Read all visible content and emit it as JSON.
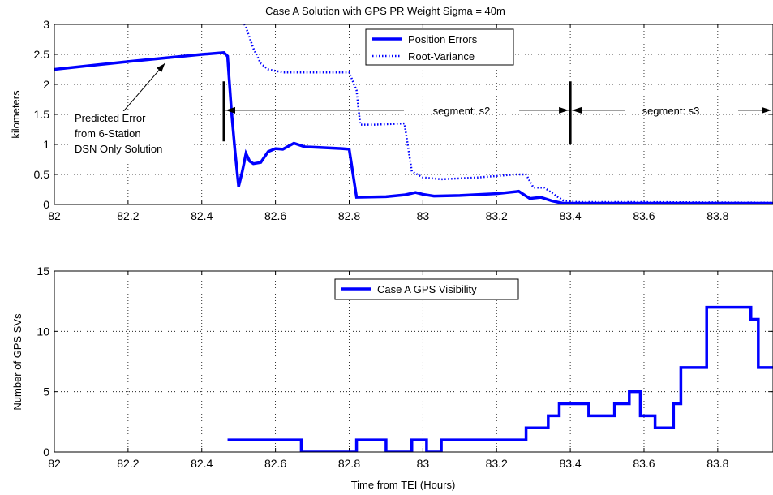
{
  "chart_data": [
    {
      "type": "line",
      "title": "Case A Solution with GPS PR Weight Sigma = 40m",
      "xlabel": "",
      "ylabel": "kilometers",
      "xlim": [
        82,
        83.95
      ],
      "ylim": [
        0,
        3
      ],
      "xticks": [
        "82",
        "82.2",
        "82.4",
        "82.6",
        "82.8",
        "83",
        "83.2",
        "83.4",
        "83.6",
        "83.8"
      ],
      "yticks": [
        "0",
        "0.5",
        "1",
        "1.5",
        "2",
        "2.5",
        "3"
      ],
      "grid": true,
      "legend_position": "top-center",
      "series": [
        {
          "name": "Position Errors",
          "style": "solid",
          "color": "#0000ff",
          "points": [
            [
              82.0,
              2.25
            ],
            [
              82.2,
              2.38
            ],
            [
              82.4,
              2.5
            ],
            [
              82.46,
              2.53
            ],
            [
              82.47,
              2.47
            ],
            [
              82.48,
              1.6
            ],
            [
              82.49,
              0.9
            ],
            [
              82.5,
              0.3
            ],
            [
              82.51,
              0.55
            ],
            [
              82.52,
              0.85
            ],
            [
              82.53,
              0.72
            ],
            [
              82.54,
              0.68
            ],
            [
              82.56,
              0.7
            ],
            [
              82.58,
              0.88
            ],
            [
              82.6,
              0.93
            ],
            [
              82.62,
              0.92
            ],
            [
              82.65,
              1.02
            ],
            [
              82.68,
              0.96
            ],
            [
              82.72,
              0.95
            ],
            [
              82.78,
              0.93
            ],
            [
              82.8,
              0.92
            ],
            [
              82.82,
              0.12
            ],
            [
              82.9,
              0.13
            ],
            [
              82.95,
              0.16
            ],
            [
              82.98,
              0.2
            ],
            [
              83.0,
              0.17
            ],
            [
              83.03,
              0.14
            ],
            [
              83.1,
              0.15
            ],
            [
              83.2,
              0.18
            ],
            [
              83.26,
              0.22
            ],
            [
              83.29,
              0.1
            ],
            [
              83.32,
              0.12
            ],
            [
              83.35,
              0.06
            ],
            [
              83.38,
              0.02
            ],
            [
              83.95,
              0.02
            ]
          ]
        },
        {
          "name": "Root-Variance",
          "style": "dotted",
          "color": "#0000ff",
          "points": [
            [
              82.48,
              3.5
            ],
            [
              82.5,
              3.2
            ],
            [
              82.52,
              2.95
            ],
            [
              82.54,
              2.6
            ],
            [
              82.56,
              2.35
            ],
            [
              82.58,
              2.25
            ],
            [
              82.62,
              2.2
            ],
            [
              82.7,
              2.2
            ],
            [
              82.8,
              2.2
            ],
            [
              82.82,
              1.9
            ],
            [
              82.83,
              1.33
            ],
            [
              82.87,
              1.33
            ],
            [
              82.95,
              1.35
            ],
            [
              82.97,
              0.55
            ],
            [
              83.0,
              0.45
            ],
            [
              83.05,
              0.42
            ],
            [
              83.15,
              0.45
            ],
            [
              83.25,
              0.5
            ],
            [
              83.28,
              0.5
            ],
            [
              83.3,
              0.28
            ],
            [
              83.33,
              0.28
            ],
            [
              83.36,
              0.15
            ],
            [
              83.38,
              0.07
            ],
            [
              83.42,
              0.04
            ],
            [
              83.6,
              0.04
            ],
            [
              83.95,
              0.03
            ]
          ]
        }
      ],
      "annotations": {
        "predicted_error_lines": [
          "Predicted Error",
          "from 6-Station",
          "DSN Only Solution"
        ],
        "segment_s2": "segment: s2",
        "segment_s3": "segment: s3",
        "markers_x": [
          82.46,
          83.4
        ]
      }
    },
    {
      "type": "line",
      "title": "",
      "xlabel": "Time from TEI (Hours)",
      "ylabel": "Number of GPS SVs",
      "xlim": [
        82,
        83.95
      ],
      "ylim": [
        0,
        15
      ],
      "xticks": [
        "82",
        "82.2",
        "82.4",
        "82.6",
        "82.8",
        "83",
        "83.2",
        "83.4",
        "83.6",
        "83.8"
      ],
      "yticks": [
        "0",
        "5",
        "10",
        "15"
      ],
      "grid": true,
      "legend_position": "top-center",
      "series": [
        {
          "name": "Case A GPS Visibility",
          "style": "step",
          "color": "#0000ff",
          "points": [
            [
              82.47,
              1
            ],
            [
              82.67,
              0
            ],
            [
              82.82,
              1
            ],
            [
              82.9,
              0
            ],
            [
              82.97,
              1
            ],
            [
              83.01,
              0
            ],
            [
              83.05,
              1
            ],
            [
              83.28,
              2
            ],
            [
              83.34,
              3
            ],
            [
              83.37,
              4
            ],
            [
              83.45,
              3
            ],
            [
              83.52,
              4
            ],
            [
              83.56,
              5
            ],
            [
              83.59,
              3
            ],
            [
              83.63,
              2
            ],
            [
              83.68,
              4
            ],
            [
              83.7,
              7
            ],
            [
              83.77,
              12
            ],
            [
              83.89,
              11
            ],
            [
              83.91,
              7
            ],
            [
              83.95,
              7
            ]
          ]
        }
      ]
    }
  ]
}
